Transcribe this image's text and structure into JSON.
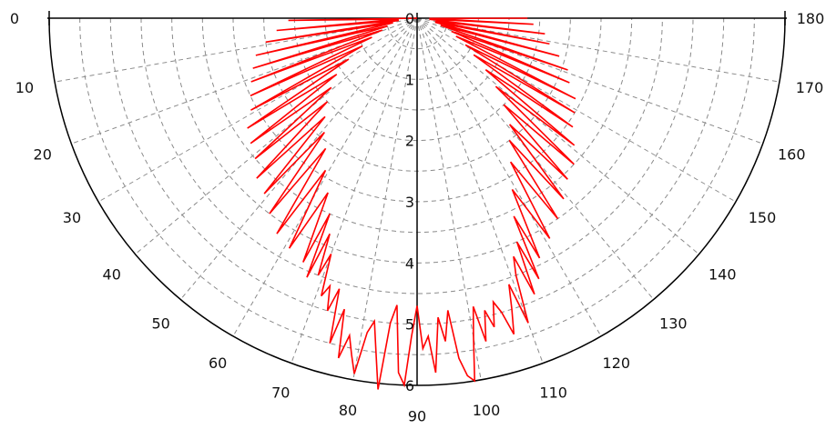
{
  "chart_data": {
    "type": "polar-line",
    "title": "",
    "angle_range": [
      0,
      180
    ],
    "radial_range": [
      0,
      6
    ],
    "radial_tick_labels": [
      "0",
      "1",
      "2",
      "3",
      "4",
      "5",
      "6"
    ],
    "angle_tick_labels": [
      "0",
      "10",
      "20",
      "30",
      "40",
      "50",
      "60",
      "70",
      "80",
      "90",
      "100",
      "110",
      "120",
      "130",
      "140",
      "150",
      "160",
      "170",
      "180"
    ],
    "grid": true,
    "series": [
      {
        "color": "#ff0000",
        "points": [
          [
            0,
            0.0
          ],
          [
            1,
            2.1
          ],
          [
            3,
            0.3
          ],
          [
            5,
            2.3
          ],
          [
            7,
            0.3
          ],
          [
            9,
            2.5
          ],
          [
            11,
            0.4
          ],
          [
            13,
            2.7
          ],
          [
            15,
            0.5
          ],
          [
            17,
            2.8
          ],
          [
            19,
            0.6
          ],
          [
            21,
            2.9
          ],
          [
            23,
            0.8
          ],
          [
            25,
            3.0
          ],
          [
            27,
            1.0
          ],
          [
            29,
            3.1
          ],
          [
            31,
            1.3
          ],
          [
            33,
            3.3
          ],
          [
            35,
            1.6
          ],
          [
            37,
            3.4
          ],
          [
            39,
            1.8
          ],
          [
            41,
            3.5
          ],
          [
            43,
            2.0
          ],
          [
            45,
            3.7
          ],
          [
            47,
            2.2
          ],
          [
            49,
            3.8
          ],
          [
            51,
            2.4
          ],
          [
            53,
            4.0
          ],
          [
            55,
            2.6
          ],
          [
            57,
            4.2
          ],
          [
            59,
            2.9
          ],
          [
            61,
            4.3
          ],
          [
            63,
            3.2
          ],
          [
            65,
            4.4
          ],
          [
            66,
            3.5
          ],
          [
            67,
            4.6
          ],
          [
            68,
            3.8
          ],
          [
            69,
            4.5
          ],
          [
            70,
            4.1
          ],
          [
            71,
            4.8
          ],
          [
            72,
            4.6
          ],
          [
            73,
            5.0
          ],
          [
            74,
            4.6
          ],
          [
            75,
            5.5
          ],
          [
            76,
            4.9
          ],
          [
            77,
            5.7
          ],
          [
            78,
            5.3
          ],
          [
            79,
            5.6
          ],
          [
            80,
            5.9
          ],
          [
            81,
            5.2
          ],
          [
            82,
            5.0
          ],
          [
            83,
            5.5
          ],
          [
            84,
            6.1
          ],
          [
            85,
            5.0
          ],
          [
            86,
            4.7
          ],
          [
            87,
            5.8
          ],
          [
            88,
            6.0
          ],
          [
            89,
            5.2
          ],
          [
            90,
            4.7
          ],
          [
            91,
            5.4
          ],
          [
            92,
            5.2
          ],
          [
            93,
            5.8
          ],
          [
            94,
            4.9
          ],
          [
            95,
            5.3
          ],
          [
            96,
            4.8
          ],
          [
            97,
            5.6
          ],
          [
            98,
            5.9
          ],
          [
            99,
            6.0
          ],
          [
            100,
            5.3
          ],
          [
            101,
            4.8
          ],
          [
            102,
            5.4
          ],
          [
            103,
            4.9
          ],
          [
            104,
            5.2
          ],
          [
            105,
            4.8
          ],
          [
            106,
            5.0
          ],
          [
            107,
            5.4
          ],
          [
            108,
            5.0
          ],
          [
            109,
            4.6
          ],
          [
            110,
            5.3
          ],
          [
            111,
            4.5
          ],
          [
            112,
            4.2
          ],
          [
            113,
            4.9
          ],
          [
            114,
            4.0
          ],
          [
            115,
            4.7
          ],
          [
            116,
            3.6
          ],
          [
            117,
            4.4
          ],
          [
            119,
            3.2
          ],
          [
            121,
            4.2
          ],
          [
            123,
            2.8
          ],
          [
            125,
            4.0
          ],
          [
            127,
            2.5
          ],
          [
            129,
            3.8
          ],
          [
            131,
            2.3
          ],
          [
            133,
            3.6
          ],
          [
            135,
            2.0
          ],
          [
            137,
            3.5
          ],
          [
            139,
            1.7
          ],
          [
            141,
            3.3
          ],
          [
            143,
            1.4
          ],
          [
            145,
            3.1
          ],
          [
            147,
            1.1
          ],
          [
            149,
            3.0
          ],
          [
            151,
            0.9
          ],
          [
            153,
            2.9
          ],
          [
            155,
            0.7
          ],
          [
            157,
            2.7
          ],
          [
            159,
            0.6
          ],
          [
            161,
            2.6
          ],
          [
            163,
            0.4
          ],
          [
            165,
            2.4
          ],
          [
            167,
            0.3
          ],
          [
            169,
            2.2
          ],
          [
            171,
            0.3
          ],
          [
            173,
            2.1
          ],
          [
            175,
            0.2
          ],
          [
            177,
            1.9
          ],
          [
            179,
            0.2
          ],
          [
            180,
            1.8
          ]
        ]
      }
    ]
  }
}
